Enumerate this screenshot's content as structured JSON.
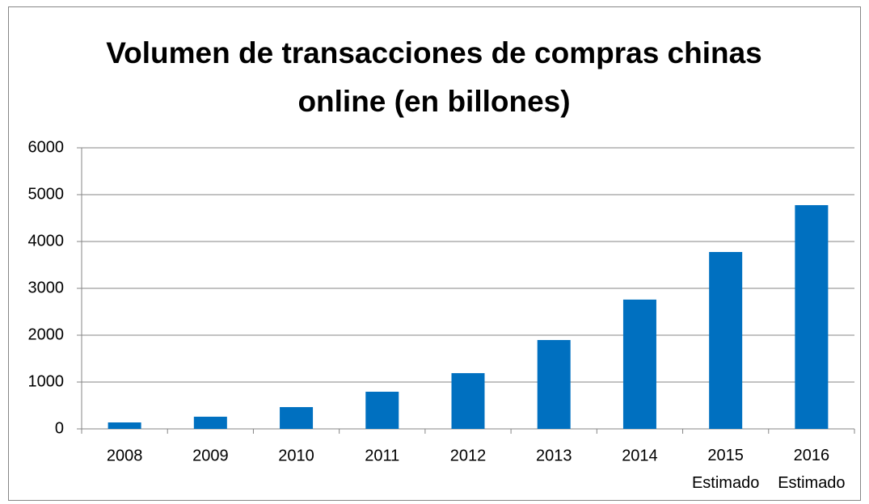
{
  "chart_data": {
    "type": "bar",
    "title": "Volumen de transacciones de compras chinas online (en billones)",
    "categories": [
      "2008",
      "2009",
      "2010",
      "2011",
      "2012",
      "2013",
      "2014",
      "2015 Estimado",
      "2016 Estimado"
    ],
    "values": [
      138,
      260,
      465,
      793,
      1190,
      1897,
      2760,
      3776,
      4776
    ],
    "color": "#0070c0",
    "ylim": [
      0,
      6000
    ],
    "yticks": [
      0,
      1000,
      2000,
      3000,
      4000,
      5000,
      6000
    ],
    "grid": true
  }
}
